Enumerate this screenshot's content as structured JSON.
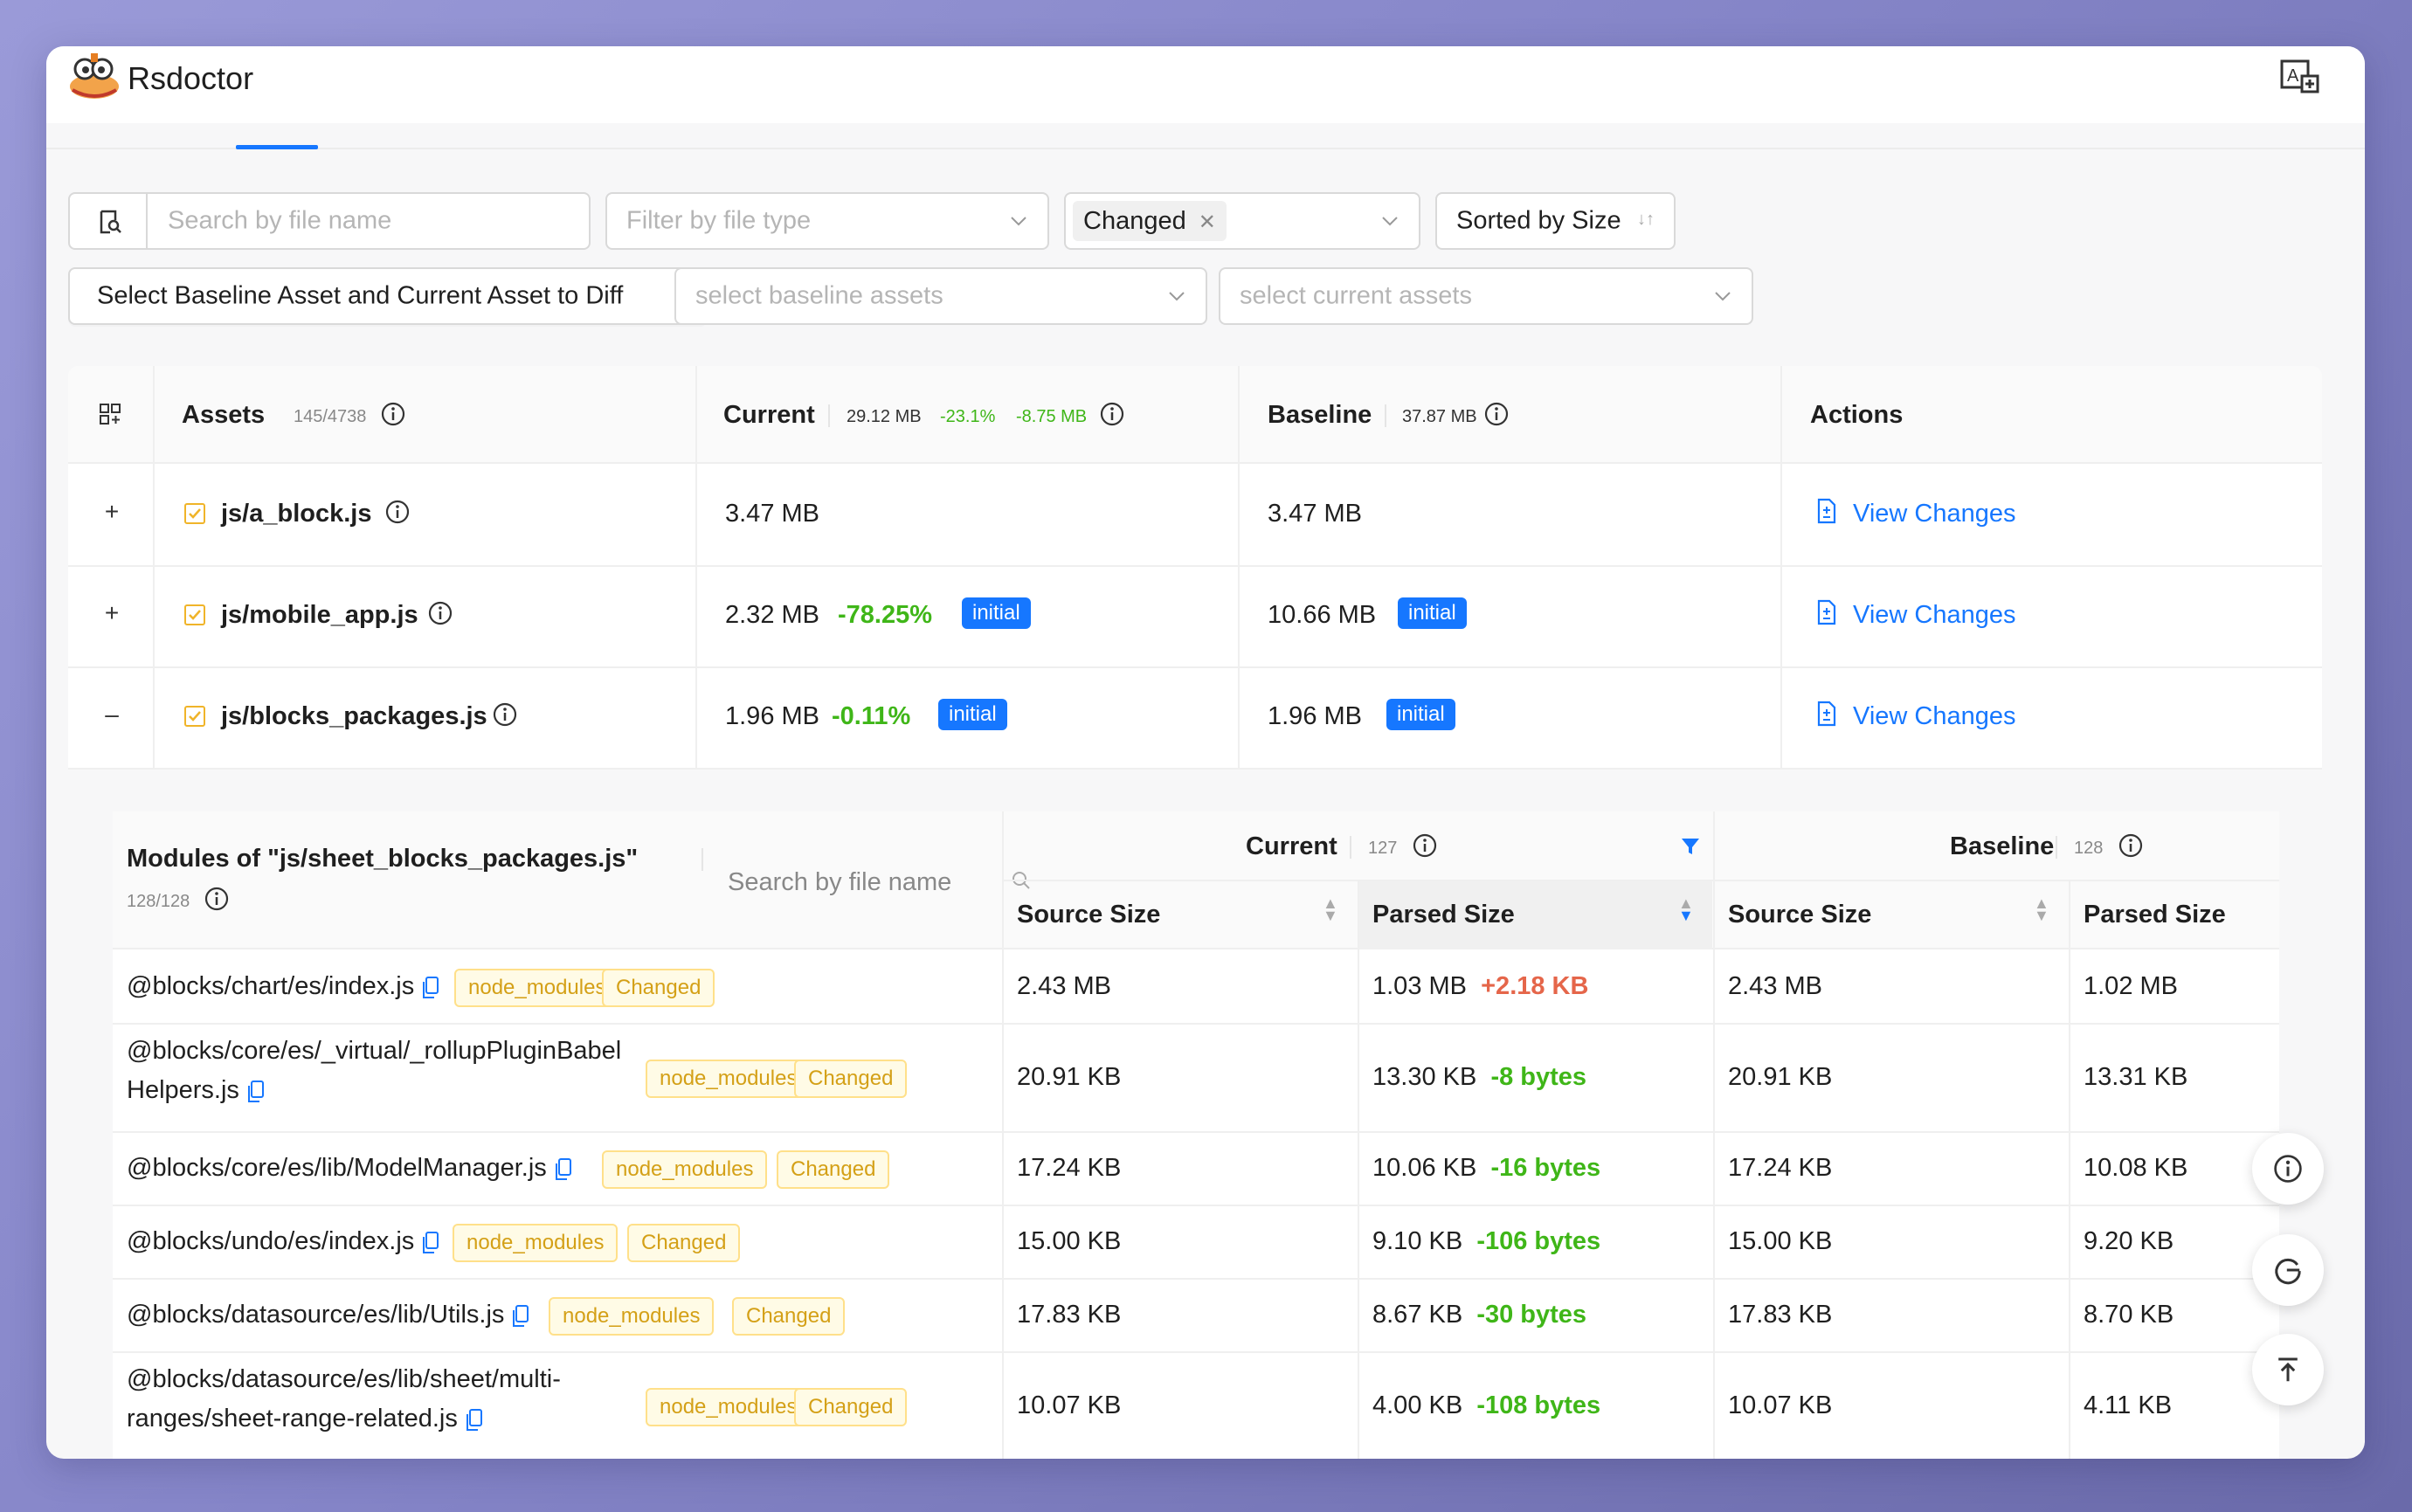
{
  "app": {
    "title": "Rsdoctor"
  },
  "filters": {
    "search_placeholder": "Search by file name",
    "file_type_placeholder": "Filter by file type",
    "changed_tag": "Changed",
    "sort_label": "Sorted by Size",
    "diff_button": "Select Baseline Asset and Current Asset to Diff",
    "baseline_placeholder": "select baseline assets",
    "current_placeholder": "select current assets"
  },
  "table": {
    "headers": {
      "assets": "Assets",
      "assets_count": "145/4738",
      "current": "Current",
      "current_size": "29.12 MB",
      "current_pct": "-23.1%",
      "current_delta": "-8.75 MB",
      "baseline": "Baseline",
      "baseline_size": "37.87 MB",
      "actions": "Actions"
    },
    "rows": [
      {
        "name": "js/a_block.js",
        "current": "3.47 MB",
        "change": "",
        "current_tag": "",
        "baseline": "3.47 MB",
        "baseline_tag": "",
        "action": "View Changes",
        "expand": "+"
      },
      {
        "name": "js/mobile_app.js",
        "current": "2.32 MB",
        "change": "-78.25%",
        "current_tag": "initial",
        "baseline": "10.66 MB",
        "baseline_tag": "initial",
        "action": "View Changes",
        "expand": "+"
      },
      {
        "name": "js/blocks_packages.js",
        "current": "1.96 MB",
        "change": "-0.11%",
        "current_tag": "initial",
        "baseline": "1.96 MB",
        "baseline_tag": "initial",
        "action": "View Changes",
        "expand": "–"
      }
    ]
  },
  "modules": {
    "title": "Modules of \"js/sheet_blocks_packages.js\"",
    "count": "128/128",
    "search_placeholder": "Search by file name",
    "current_label": "Current",
    "current_count": "127",
    "baseline_label": "Baseline",
    "baseline_count": "128",
    "col_source": "Source Size",
    "col_parsed": "Parsed Size",
    "tag_node_modules": "node_modules",
    "tag_changed": "Changed",
    "rows": [
      {
        "name": "@blocks/chart/es/index.js",
        "name2": "",
        "cur_source": "2.43 MB",
        "cur_parsed": "1.03 MB",
        "delta": "+2.18 KB",
        "delta_type": "neg",
        "base_source": "2.43 MB",
        "base_parsed": "1.02 MB"
      },
      {
        "name": "@blocks/core/es/_virtual/_rollupPluginBabel",
        "name2": "Helpers.js",
        "cur_source": "20.91 KB",
        "cur_parsed": "13.30 KB",
        "delta": "-8 bytes",
        "delta_type": "pos",
        "base_source": "20.91 KB",
        "base_parsed": "13.31 KB"
      },
      {
        "name": "@blocks/core/es/lib/ModelManager.js",
        "name2": "",
        "cur_source": "17.24 KB",
        "cur_parsed": "10.06 KB",
        "delta": "-16 bytes",
        "delta_type": "pos",
        "base_source": "17.24 KB",
        "base_parsed": "10.08 KB"
      },
      {
        "name": "@blocks/undo/es/index.js",
        "name2": "",
        "cur_source": "15.00 KB",
        "cur_parsed": "9.10 KB",
        "delta": "-106 bytes",
        "delta_type": "pos",
        "base_source": "15.00 KB",
        "base_parsed": "9.20 KB"
      },
      {
        "name": "@blocks/datasource/es/lib/Utils.js",
        "name2": "",
        "cur_source": "17.83 KB",
        "cur_parsed": "8.67 KB",
        "delta": "-30 bytes",
        "delta_type": "pos",
        "base_source": "17.83 KB",
        "base_parsed": "8.70 KB"
      },
      {
        "name": "@blocks/datasource/es/lib/sheet/multi-",
        "name2": "ranges/sheet-range-related.js",
        "cur_source": "10.07 KB",
        "cur_parsed": "4.00 KB",
        "delta": "-108 bytes",
        "delta_type": "pos",
        "base_source": "10.07 KB",
        "base_parsed": "4.11 KB"
      }
    ]
  }
}
